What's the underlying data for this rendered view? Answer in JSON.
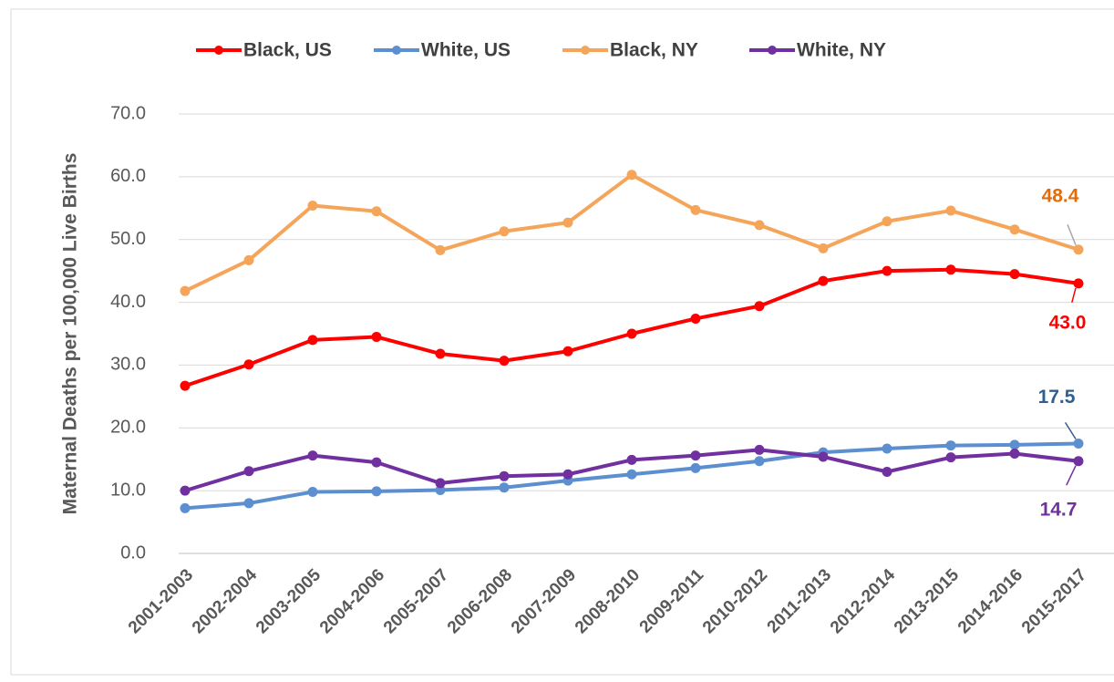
{
  "chart_data": {
    "type": "line",
    "y_label": "Maternal Deaths per 100,000 Live Births",
    "categories": [
      "2001-2003",
      "2002-2004",
      "2003-2005",
      "2004-2006",
      "2005-2007",
      "2006-2008",
      "2007-2009",
      "2008-2010",
      "2009-2011",
      "2010-2012",
      "2011-2013",
      "2012-2014",
      "2013-2015",
      "2014-2016",
      "2015-2017"
    ],
    "series": [
      {
        "name": "Black, US",
        "color": "#ff0000",
        "label_color": "#ff0000",
        "values": [
          26.7,
          30.1,
          34.0,
          34.5,
          31.8,
          30.7,
          32.2,
          35.0,
          37.4,
          39.4,
          43.4,
          45.0,
          45.2,
          44.5,
          43.0
        ],
        "value_labels": [
          null,
          null,
          null,
          null,
          null,
          null,
          null,
          null,
          null,
          null,
          null,
          null,
          null,
          null,
          "43.0"
        ]
      },
      {
        "name": "White, US",
        "color": "#5b8fd0",
        "label_color": "#2f5f8f",
        "values": [
          7.2,
          8.0,
          9.8,
          9.9,
          10.1,
          10.5,
          11.6,
          12.6,
          13.6,
          14.7,
          16.1,
          16.7,
          17.2,
          17.3,
          17.5
        ],
        "value_labels": [
          null,
          null,
          null,
          null,
          null,
          null,
          null,
          null,
          null,
          null,
          null,
          null,
          null,
          null,
          "17.5"
        ]
      },
      {
        "name": "Black, NY",
        "color": "#f5a55a",
        "label_color": "#e36c0a",
        "values": [
          41.8,
          46.7,
          55.4,
          54.5,
          48.3,
          51.3,
          52.7,
          60.3,
          54.7,
          52.3,
          48.6,
          52.9,
          54.6,
          51.6,
          48.4
        ],
        "value_labels": [
          null,
          null,
          null,
          null,
          null,
          null,
          null,
          null,
          null,
          null,
          null,
          null,
          null,
          null,
          "48.4"
        ]
      },
      {
        "name": "White, NY",
        "color": "#7030a0",
        "label_color": "#7030a0",
        "values": [
          10.0,
          13.1,
          15.6,
          14.5,
          11.2,
          12.3,
          12.6,
          14.9,
          15.6,
          16.5,
          15.4,
          13.0,
          15.3,
          15.9,
          14.7
        ],
        "value_labels": [
          null,
          null,
          null,
          null,
          null,
          null,
          null,
          null,
          null,
          null,
          null,
          null,
          null,
          null,
          "14.7"
        ]
      }
    ],
    "ylim": [
      0,
      70
    ],
    "yticks": [
      {
        "value": 0,
        "label": "0.0"
      },
      {
        "value": 10,
        "label": "10.0"
      },
      {
        "value": 20,
        "label": "20.0"
      },
      {
        "value": 30,
        "label": "30.0"
      },
      {
        "value": 40,
        "label": "40.0"
      },
      {
        "value": 50,
        "label": "50.0"
      },
      {
        "value": 60,
        "label": "60.0"
      },
      {
        "value": 70,
        "label": "70.0"
      }
    ],
    "grid": true,
    "legend": "top"
  }
}
